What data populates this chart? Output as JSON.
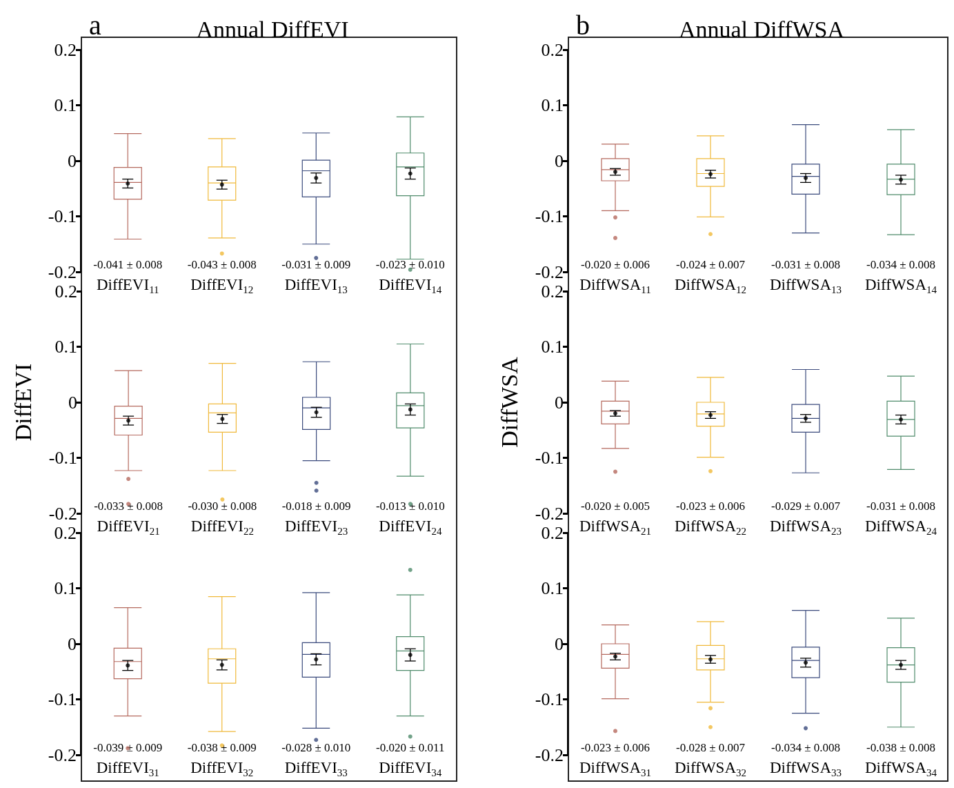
{
  "chart_data": [
    {
      "type": "box",
      "title": "Annual DiffEVI",
      "categories": [
        "DiffEVI$_{11}$",
        "DiffEVI$_{12}$",
        "DiffEVI$_{13}$",
        "DiffEVI$_{14}$"
      ],
      "ylim": [
        -0.2,
        0.2
      ],
      "yticks": [
        -0.2,
        -0.1,
        0,
        0.1,
        0.2
      ],
      "annotations": [
        "a",
        "-0.041 ± 0.008",
        "-0.043 ± 0.008",
        "-0.031 ± 0.009",
        "-0.023 ± 0.010"
      ],
      "series": [
        {
          "type": "box",
          "colors": [
            "#b5695e",
            "#f0b93a",
            "#3a4a7c",
            "#4f8b6b"
          ],
          "boxes": [
            {
              "low": -0.141,
              "q1": -0.069,
              "median": -0.039,
              "q3": -0.012,
              "high": 0.049
            },
            {
              "low": -0.139,
              "q1": -0.071,
              "median": -0.04,
              "q3": -0.011,
              "high": 0.04,
              "outliers": [
                -0.167
              ]
            },
            {
              "low": -0.15,
              "q1": -0.065,
              "median": -0.018,
              "q3": 0.001,
              "high": 0.05,
              "outliers": [
                -0.175
              ]
            },
            {
              "low": -0.177,
              "q1": -0.063,
              "median": -0.011,
              "q3": 0.014,
              "high": 0.079,
              "outliers": [
                -0.196
              ]
            }
          ]
        },
        {
          "type": "scatter",
          "color": "#000000",
          "x": [
            "DiffEVI$_{11}$",
            "DiffEVI$_{12}$",
            "DiffEVI$_{13}$",
            "DiffEVI$_{14}$"
          ],
          "values": [
            -0.041,
            -0.043,
            -0.031,
            -0.023
          ],
          "errors": [
            0.008,
            0.008,
            0.009,
            0.01
          ]
        }
      ]
    },
    {
      "type": "box",
      "title": "Annual DiffWSA",
      "categories": [
        "DiffWSA$_{11}$",
        "DiffWSA$_{12}$",
        "DiffWSA$_{13}$",
        "DiffWSA$_{14}$"
      ],
      "ylim": [
        -0.2,
        0.2
      ],
      "yticks": [
        -0.2,
        -0.1,
        0,
        0.1,
        0.2
      ],
      "annotations": [
        "b",
        "-0.020 ± 0.006",
        "-0.024 ± 0.007",
        "-0.031 ± 0.008",
        "-0.034 ± 0.008"
      ],
      "series": [
        {
          "type": "box",
          "colors": [
            "#b5695e",
            "#f0b93a",
            "#3a4a7c",
            "#4f8b6b"
          ],
          "boxes": [
            {
              "low": -0.09,
              "q1": -0.036,
              "median": -0.016,
              "q3": 0.004,
              "high": 0.03,
              "outliers": [
                -0.102,
                -0.139
              ]
            },
            {
              "low": -0.101,
              "q1": -0.046,
              "median": -0.023,
              "q3": 0.004,
              "high": 0.045,
              "outliers": [
                -0.132
              ]
            },
            {
              "low": -0.13,
              "q1": -0.06,
              "median": -0.028,
              "q3": -0.006,
              "high": 0.065
            },
            {
              "low": -0.133,
              "q1": -0.061,
              "median": -0.033,
              "q3": -0.006,
              "high": 0.056
            }
          ]
        },
        {
          "type": "scatter",
          "color": "#000000",
          "x": [
            "DiffWSA$_{11}$",
            "DiffWSA$_{12}$",
            "DiffWSA$_{13}$",
            "DiffWSA$_{14}$"
          ],
          "values": [
            -0.02,
            -0.024,
            -0.031,
            -0.034
          ],
          "errors": [
            0.006,
            0.007,
            0.008,
            0.008
          ]
        }
      ]
    },
    {
      "type": "box",
      "ylabel": "DiffEVI",
      "categories": [
        "DiffEVI$_{21}$",
        "DiffEVI$_{22}$",
        "DiffEVI$_{23}$",
        "DiffEVI$_{24}$"
      ],
      "ylim": [
        -0.2,
        0.2
      ],
      "yticks": [
        -0.2,
        -0.1,
        0,
        0.1,
        0.2
      ],
      "annotations": [
        "-0.033 ± 0.008",
        "-0.030 ± 0.008",
        "-0.018 ± 0.009",
        "-0.013 ± 0.010"
      ],
      "series": [
        {
          "type": "box",
          "colors": [
            "#b5695e",
            "#f0b93a",
            "#3a4a7c",
            "#4f8b6b"
          ],
          "boxes": [
            {
              "low": -0.123,
              "q1": -0.059,
              "median": -0.029,
              "q3": -0.007,
              "high": 0.057,
              "outliers": [
                -0.138,
                -0.183
              ]
            },
            {
              "low": -0.123,
              "q1": -0.054,
              "median": -0.019,
              "q3": -0.003,
              "high": 0.07,
              "outliers": [
                -0.175
              ]
            },
            {
              "low": -0.105,
              "q1": -0.049,
              "median": -0.01,
              "q3": 0.009,
              "high": 0.073,
              "outliers": [
                -0.145,
                -0.159
              ]
            },
            {
              "low": -0.133,
              "q1": -0.046,
              "median": -0.006,
              "q3": 0.017,
              "high": 0.105,
              "outliers": [
                -0.183
              ]
            }
          ]
        },
        {
          "type": "scatter",
          "color": "#000000",
          "x": [
            "DiffEVI$_{21}$",
            "DiffEVI$_{22}$",
            "DiffEVI$_{23}$",
            "DiffEVI$_{24}$"
          ],
          "values": [
            -0.033,
            -0.03,
            -0.018,
            -0.013
          ],
          "errors": [
            0.008,
            0.008,
            0.009,
            0.01
          ]
        }
      ]
    },
    {
      "type": "box",
      "ylabel": "DiffWSA",
      "categories": [
        "DiffWSA$_{21}$",
        "DiffWSA$_{22}$",
        "DiffWSA$_{23}$",
        "DiffWSA$_{24}$"
      ],
      "ylim": [
        -0.2,
        0.2
      ],
      "yticks": [
        -0.2,
        -0.1,
        0,
        0.1,
        0.2
      ],
      "annotations": [
        "-0.020 ± 0.005",
        "-0.023 ± 0.006",
        "-0.029 ± 0.007",
        "-0.031 ± 0.008"
      ],
      "series": [
        {
          "type": "box",
          "colors": [
            "#b5695e",
            "#f0b93a",
            "#3a4a7c",
            "#4f8b6b"
          ],
          "boxes": [
            {
              "low": -0.083,
              "q1": -0.039,
              "median": -0.016,
              "q3": 0.002,
              "high": 0.038,
              "outliers": [
                -0.125
              ]
            },
            {
              "low": -0.099,
              "q1": -0.043,
              "median": -0.021,
              "q3": 0,
              "high": 0.045,
              "outliers": [
                -0.124
              ]
            },
            {
              "low": -0.127,
              "q1": -0.054,
              "median": -0.029,
              "q3": -0.004,
              "high": 0.059
            },
            {
              "low": -0.121,
              "q1": -0.061,
              "median": -0.031,
              "q3": 0.002,
              "high": 0.047
            }
          ]
        },
        {
          "type": "scatter",
          "color": "#000000",
          "x": [
            "DiffWSA$_{21}$",
            "DiffWSA$_{22}$",
            "DiffWSA$_{23}$",
            "DiffWSA$_{24}$"
          ],
          "values": [
            -0.02,
            -0.023,
            -0.029,
            -0.031
          ],
          "errors": [
            0.005,
            0.006,
            0.007,
            0.008
          ]
        }
      ]
    },
    {
      "type": "box",
      "categories": [
        "DiffEVI$_{31}$",
        "DiffEVI$_{32}$",
        "DiffEVI$_{33}$",
        "DiffEVI$_{34}$"
      ],
      "ylim": [
        -0.2,
        0.2
      ],
      "yticks": [
        -0.2,
        -0.1,
        0,
        0.1,
        0.2
      ],
      "annotations": [
        "-0.039 ± 0.009",
        "-0.038 ± 0.009",
        "-0.028 ± 0.010",
        "-0.020 ± 0.011"
      ],
      "series": [
        {
          "type": "box",
          "colors": [
            "#b5695e",
            "#f0b93a",
            "#3a4a7c",
            "#4f8b6b"
          ],
          "boxes": [
            {
              "low": -0.13,
              "q1": -0.063,
              "median": -0.032,
              "q3": -0.008,
              "high": 0.065,
              "outliers": [
                -0.188
              ]
            },
            {
              "low": -0.158,
              "q1": -0.071,
              "median": -0.027,
              "q3": -0.009,
              "high": 0.085,
              "outliers": [
                -0.183
              ]
            },
            {
              "low": -0.152,
              "q1": -0.06,
              "median": -0.019,
              "q3": 0.002,
              "high": 0.092,
              "outliers": [
                -0.173
              ]
            },
            {
              "low": -0.13,
              "q1": -0.048,
              "median": -0.013,
              "q3": 0.013,
              "high": 0.088,
              "outliers": [
                0.133,
                -0.167
              ]
            }
          ]
        },
        {
          "type": "scatter",
          "color": "#000000",
          "x": [
            "DiffEVI$_{31}$",
            "DiffEVI$_{32}$",
            "DiffEVI$_{33}$",
            "DiffEVI$_{34}$"
          ],
          "values": [
            -0.039,
            -0.038,
            -0.028,
            -0.02
          ],
          "errors": [
            0.009,
            0.009,
            0.01,
            0.011
          ]
        }
      ]
    },
    {
      "type": "box",
      "categories": [
        "DiffWSA$_{31}$",
        "DiffWSA$_{32}$",
        "DiffWSA$_{33}$",
        "DiffWSA$_{34}$"
      ],
      "ylim": [
        -0.2,
        0.2
      ],
      "yticks": [
        -0.2,
        -0.1,
        0,
        0.1,
        0.2
      ],
      "annotations": [
        "-0.023 ± 0.006",
        "-0.028 ± 0.007",
        "-0.034 ± 0.008",
        "-0.038 ± 0.008"
      ],
      "series": [
        {
          "type": "box",
          "colors": [
            "#b5695e",
            "#f0b93a",
            "#3a4a7c",
            "#4f8b6b"
          ],
          "boxes": [
            {
              "low": -0.099,
              "q1": -0.044,
              "median": -0.019,
              "q3": 0,
              "high": 0.034,
              "outliers": [
                -0.157
              ]
            },
            {
              "low": -0.105,
              "q1": -0.047,
              "median": -0.027,
              "q3": -0.003,
              "high": 0.04,
              "outliers": [
                -0.116,
                -0.15
              ]
            },
            {
              "low": -0.125,
              "q1": -0.061,
              "median": -0.03,
              "q3": -0.006,
              "high": 0.06,
              "outliers": [
                -0.152
              ]
            },
            {
              "low": -0.15,
              "q1": -0.069,
              "median": -0.038,
              "q3": -0.007,
              "high": 0.046
            }
          ]
        },
        {
          "type": "scatter",
          "color": "#000000",
          "x": [
            "DiffWSA$_{31}$",
            "DiffWSA$_{32}$",
            "DiffWSA$_{33}$",
            "DiffWSA$_{34}$"
          ],
          "values": [
            -0.023,
            -0.028,
            -0.034,
            -0.038
          ],
          "errors": [
            0.006,
            0.007,
            0.008,
            0.008
          ]
        }
      ]
    }
  ]
}
